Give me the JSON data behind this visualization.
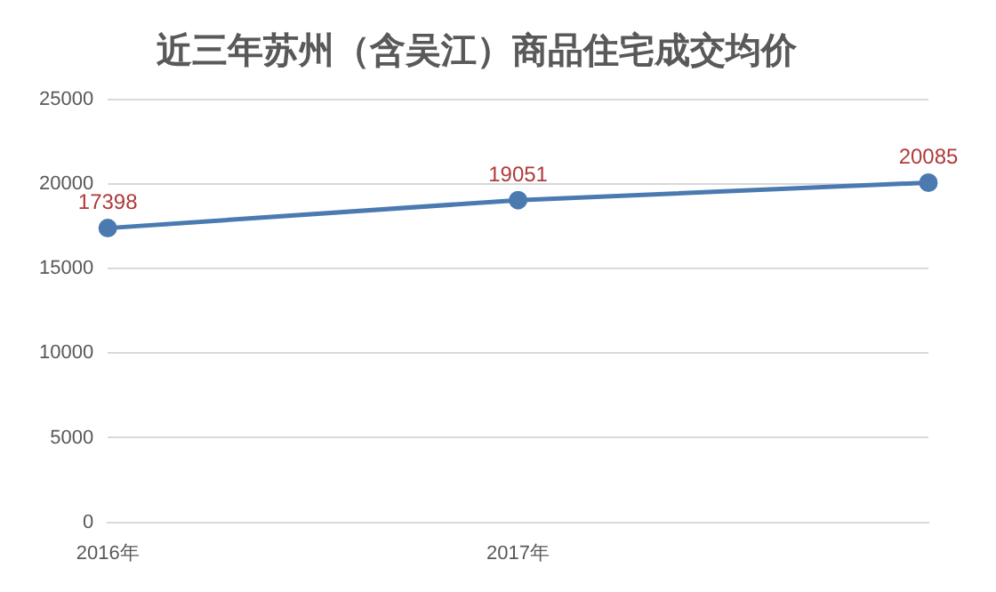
{
  "chart_data": {
    "type": "line",
    "title": "近三年苏州（含吴江）商品住宅成交均价",
    "categories": [
      "2016年",
      "2017年",
      null
    ],
    "series": [
      {
        "color": "#4a7ab0",
        "values": [
          17398,
          19051,
          20085
        ]
      }
    ],
    "ylim": [
      0,
      25000
    ],
    "yticks": [
      0,
      5000,
      10000,
      15000,
      20000,
      25000
    ],
    "grid": "y",
    "marker": "circle",
    "data_labels": true,
    "legend": false
  }
}
